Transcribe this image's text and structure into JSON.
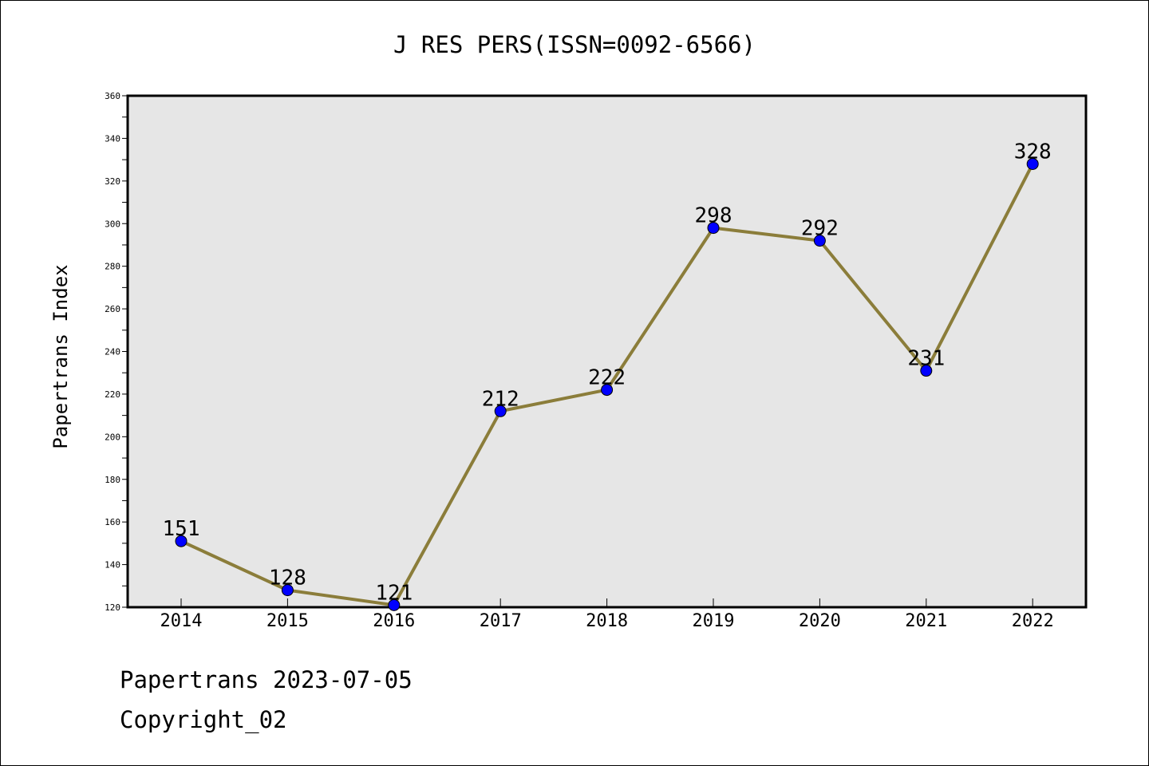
{
  "chart_data": {
    "type": "line",
    "title": "J RES PERS(ISSN=0092-6566)",
    "xlabel": "",
    "ylabel": "Papertrans Index",
    "categories": [
      "2014",
      "2015",
      "2016",
      "2017",
      "2018",
      "2019",
      "2020",
      "2021",
      "2022"
    ],
    "values": [
      151,
      128,
      121,
      212,
      222,
      298,
      292,
      231,
      328
    ],
    "data_labels": [
      "151",
      "128",
      "121",
      "212",
      "222",
      "298",
      "292",
      "231",
      "328"
    ],
    "ylim": [
      120,
      360
    ],
    "yticks": [
      "120",
      "140",
      "160",
      "180",
      "200",
      "220",
      "240",
      "260",
      "280",
      "300",
      "320",
      "340",
      "360"
    ],
    "grid": false,
    "legend": "none",
    "colors": {
      "line": "#8B7D3A",
      "marker": "#0000FF",
      "marker_edge": "#000000",
      "plot_background": "#E6E6E6",
      "axis": "#000000"
    }
  },
  "footer": {
    "line1": "Papertrans 2023-07-05",
    "line2": "Copyright_02"
  }
}
